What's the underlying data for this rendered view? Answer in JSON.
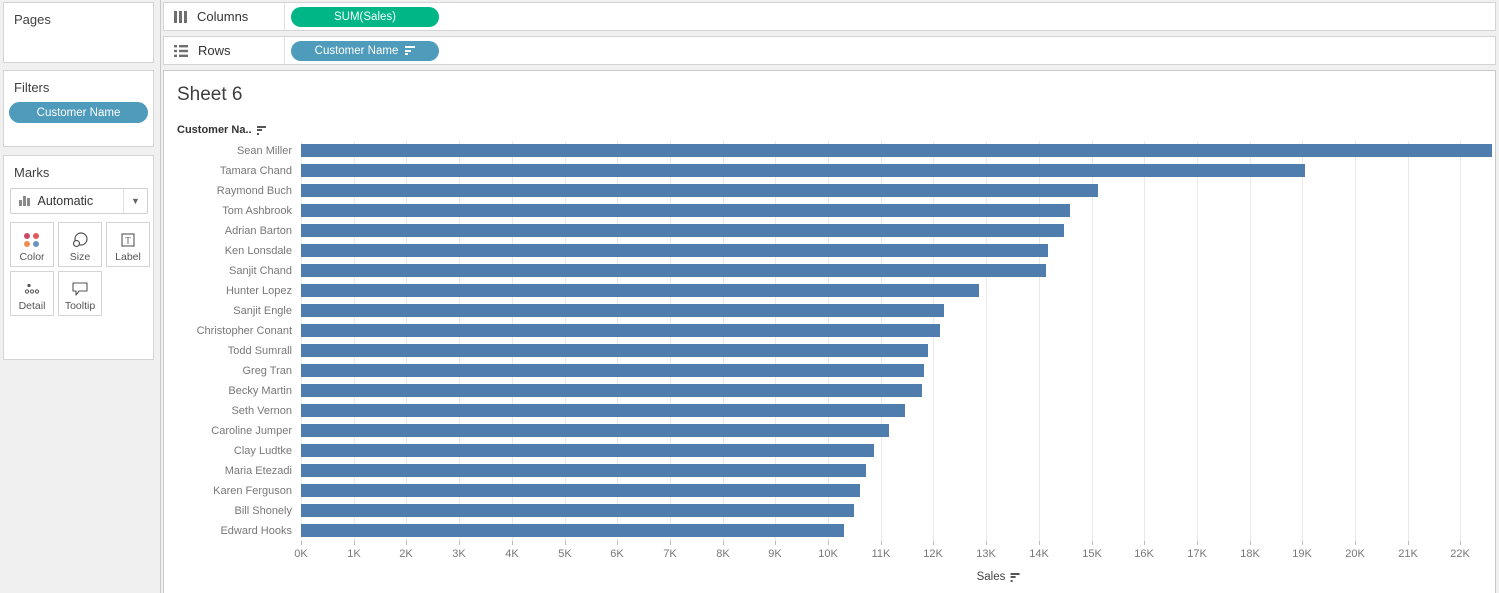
{
  "shelves": {
    "columns_label": "Columns",
    "rows_label": "Rows",
    "columns_pill": "SUM(Sales)",
    "rows_pill": "Customer Name"
  },
  "sidebar": {
    "pages_label": "Pages",
    "filters_label": "Filters",
    "filter_pill": "Customer Name",
    "marks_label": "Marks",
    "mark_type": "Automatic",
    "buttons": {
      "color": "Color",
      "size": "Size",
      "label": "Label",
      "detail": "Detail",
      "tooltip": "Tooltip"
    }
  },
  "sheet": {
    "title": "Sheet 6",
    "row_header": "Customer Na..",
    "axis_title": "Sales"
  },
  "colors": {
    "measure_pill": "#00b586",
    "dimension_pill": "#4f9bbb",
    "bar": "#4f7eae",
    "gridline": "#e9e9e9",
    "axis_text": "#787878",
    "dark_text": "#3f3f3f"
  },
  "chart_data": {
    "type": "bar",
    "orientation": "horizontal",
    "title": "Sheet 6",
    "xlabel": "Sales",
    "ylabel": "Customer Name",
    "sort": "descending by SUM(Sales)",
    "legend": "none",
    "grid": "vertical gridlines every 1K",
    "categories": [
      "Sean Miller",
      "Tamara Chand",
      "Raymond Buch",
      "Tom Ashbrook",
      "Adrian Barton",
      "Ken Lonsdale",
      "Sanjit Chand",
      "Hunter Lopez",
      "Sanjit Engle",
      "Christopher Conant",
      "Todd Sumrall",
      "Greg Tran",
      "Becky Martin",
      "Seth Vernon",
      "Caroline Jumper",
      "Clay Ludtke",
      "Maria Etezadi",
      "Karen Ferguson",
      "Bill Shonely",
      "Edward Hooks"
    ],
    "values_k": [
      25.04,
      19.05,
      15.12,
      14.6,
      14.47,
      14.18,
      14.14,
      12.87,
      12.21,
      12.13,
      11.89,
      11.82,
      11.79,
      11.47,
      11.16,
      10.88,
      10.72,
      10.6,
      10.5,
      10.31
    ],
    "x_tick_labels": [
      "0K",
      "1K",
      "2K",
      "3K",
      "4K",
      "5K",
      "6K",
      "7K",
      "8K",
      "9K",
      "10K",
      "11K",
      "12K",
      "13K",
      "14K",
      "15K",
      "16K",
      "17K",
      "18K",
      "19K",
      "20K",
      "21K",
      "22K"
    ],
    "xlim_visible_k": [
      0,
      22.5
    ],
    "clipped_categories": [
      "Sean Miller"
    ]
  }
}
